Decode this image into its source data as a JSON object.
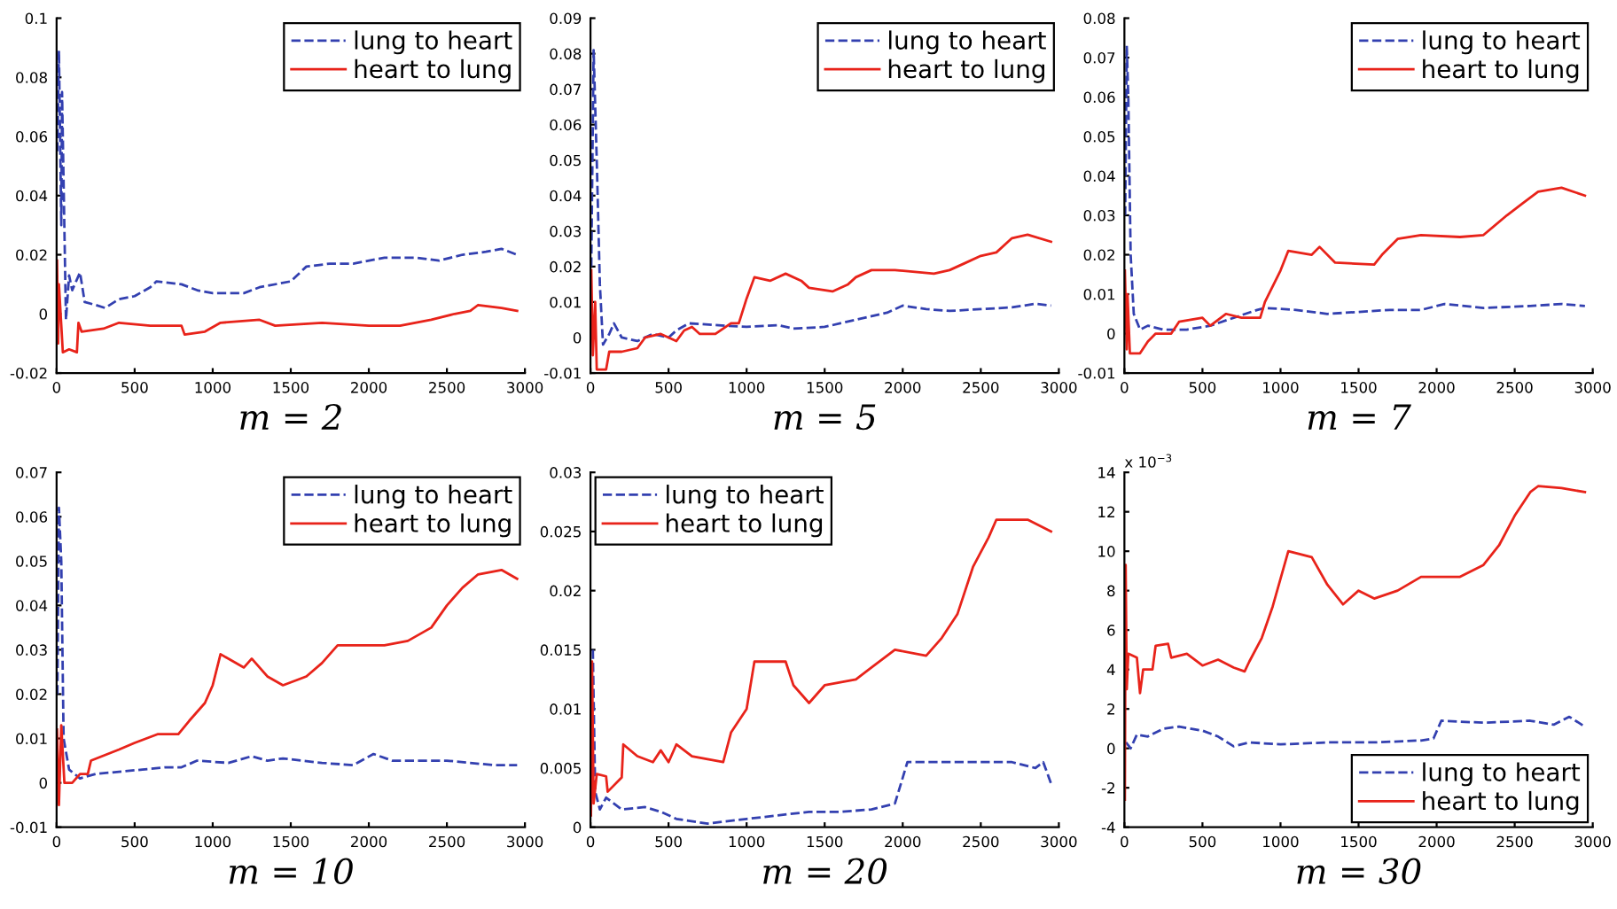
{
  "chart_data": [
    {
      "type": "line",
      "xlabel": "m = 2",
      "xlim": [
        0,
        3000
      ],
      "xticks": [
        0,
        500,
        1000,
        1500,
        2000,
        2500,
        3000
      ],
      "ylim": [
        -0.02,
        0.1
      ],
      "yticks": [
        -0.02,
        0,
        0.02,
        0.04,
        0.06,
        0.08,
        0.1
      ],
      "legend": "top right",
      "grid": false,
      "series": [
        {
          "name": "lung to heart",
          "color": "#3340b0",
          "line_style": "dashed",
          "x": [
            5,
            15,
            30,
            35,
            60,
            80,
            100,
            150,
            180,
            250,
            310,
            400,
            500,
            600,
            640,
            800,
            900,
            1000,
            1200,
            1300,
            1500,
            1600,
            1750,
            1900,
            2100,
            2300,
            2450,
            2600,
            2750,
            2850,
            2950
          ],
          "values": [
            0.055,
            0.089,
            0.03,
            0.075,
            -0.002,
            0.013,
            0.008,
            0.014,
            0.004,
            0.003,
            0.002,
            0.005,
            0.006,
            0.009,
            0.011,
            0.01,
            0.008,
            0.007,
            0.007,
            0.009,
            0.011,
            0.016,
            0.017,
            0.017,
            0.019,
            0.019,
            0.018,
            0.02,
            0.021,
            0.022,
            0.02
          ]
        },
        {
          "name": "heart to lung",
          "color": "#e8231a",
          "line_style": "solid",
          "x": [
            3,
            10,
            15,
            40,
            80,
            130,
            140,
            160,
            300,
            400,
            600,
            800,
            820,
            950,
            1050,
            1300,
            1400,
            1700,
            2000,
            2200,
            2400,
            2550,
            2650,
            2700,
            2850,
            2950
          ],
          "values": [
            0.018,
            -0.01,
            0.01,
            -0.013,
            -0.012,
            -0.013,
            -0.003,
            -0.006,
            -0.005,
            -0.003,
            -0.004,
            -0.004,
            -0.007,
            -0.006,
            -0.003,
            -0.002,
            -0.004,
            -0.003,
            -0.004,
            -0.004,
            -0.002,
            0,
            0.001,
            0.003,
            0.002,
            0.001
          ]
        }
      ]
    },
    {
      "type": "line",
      "xlabel": "m = 5",
      "xlim": [
        0,
        3000
      ],
      "xticks": [
        0,
        500,
        1000,
        1500,
        2000,
        2500,
        3000
      ],
      "ylim": [
        -0.01,
        0.09
      ],
      "yticks": [
        -0.01,
        0,
        0.01,
        0.02,
        0.03,
        0.04,
        0.05,
        0.06,
        0.07,
        0.08,
        0.09
      ],
      "legend": "top right",
      "grid": false,
      "series": [
        {
          "name": "lung to heart",
          "color": "#3340b0",
          "line_style": "dashed",
          "x": [
            5,
            20,
            40,
            60,
            80,
            120,
            150,
            200,
            300,
            400,
            500,
            550,
            630,
            800,
            1000,
            1200,
            1300,
            1500,
            1700,
            1900,
            2000,
            2150,
            2300,
            2500,
            2700,
            2850,
            2950
          ],
          "values": [
            0.02,
            0.081,
            0.05,
            0.015,
            -0.002,
            0.001,
            0.004,
            0,
            -0.001,
            0.001,
            0,
            0.002,
            0.004,
            0.0035,
            0.003,
            0.0035,
            0.0025,
            0.003,
            0.005,
            0.007,
            0.009,
            0.008,
            0.0075,
            0.008,
            0.0085,
            0.0095,
            0.009
          ]
        },
        {
          "name": "heart to lung",
          "color": "#e8231a",
          "line_style": "solid",
          "x": [
            5,
            15,
            30,
            40,
            100,
            120,
            200,
            300,
            350,
            450,
            550,
            600,
            650,
            700,
            800,
            900,
            950,
            1000,
            1050,
            1150,
            1250,
            1350,
            1400,
            1550,
            1650,
            1700,
            1800,
            1950,
            2200,
            2300,
            2400,
            2500,
            2600,
            2700,
            2800,
            2950
          ],
          "values": [
            0.019,
            -0.005,
            0.01,
            -0.009,
            -0.009,
            -0.004,
            -0.004,
            -0.003,
            0,
            0.001,
            -0.001,
            0.002,
            0.003,
            0.001,
            0.001,
            0.004,
            0.004,
            0.011,
            0.017,
            0.016,
            0.018,
            0.016,
            0.014,
            0.013,
            0.015,
            0.017,
            0.019,
            0.019,
            0.018,
            0.019,
            0.021,
            0.023,
            0.024,
            0.028,
            0.029,
            0.027
          ]
        }
      ]
    },
    {
      "type": "line",
      "xlabel": "m = 7",
      "xlim": [
        0,
        3000
      ],
      "xticks": [
        0,
        500,
        1000,
        1500,
        2000,
        2500,
        3000
      ],
      "ylim": [
        -0.01,
        0.08
      ],
      "yticks": [
        -0.01,
        0,
        0.01,
        0.02,
        0.03,
        0.04,
        0.05,
        0.06,
        0.07,
        0.08
      ],
      "legend": "top right",
      "grid": false,
      "series": [
        {
          "name": "lung to heart",
          "color": "#3340b0",
          "line_style": "dashed",
          "x": [
            5,
            15,
            25,
            40,
            60,
            100,
            150,
            250,
            400,
            550,
            700,
            850,
            900,
            1100,
            1300,
            1500,
            1700,
            1900,
            2050,
            2300,
            2600,
            2800,
            2950
          ],
          "values": [
            0.03,
            0.073,
            0.06,
            0.02,
            0.005,
            0.001,
            0.002,
            0.001,
            0.001,
            0.002,
            0.004,
            0.006,
            0.0065,
            0.006,
            0.005,
            0.0055,
            0.006,
            0.006,
            0.0075,
            0.0065,
            0.007,
            0.0075,
            0.007
          ]
        },
        {
          "name": "heart to lung",
          "color": "#e8231a",
          "line_style": "solid",
          "x": [
            3,
            15,
            20,
            35,
            100,
            150,
            200,
            300,
            350,
            500,
            550,
            650,
            750,
            870,
            900,
            1000,
            1050,
            1200,
            1250,
            1350,
            1600,
            1650,
            1750,
            1900,
            2150,
            2300,
            2450,
            2550,
            2650,
            2800,
            2950
          ],
          "values": [
            0.016,
            -0.004,
            0.01,
            -0.005,
            -0.005,
            -0.002,
            0,
            0,
            0.003,
            0.004,
            0.002,
            0.005,
            0.004,
            0.004,
            0.008,
            0.016,
            0.021,
            0.02,
            0.022,
            0.018,
            0.0175,
            0.02,
            0.024,
            0.025,
            0.0245,
            0.025,
            0.03,
            0.033,
            0.036,
            0.037,
            0.035
          ]
        }
      ]
    },
    {
      "type": "line",
      "xlabel": "m = 10",
      "xlim": [
        0,
        3000
      ],
      "xticks": [
        0,
        500,
        1000,
        1500,
        2000,
        2500,
        3000
      ],
      "ylim": [
        -0.01,
        0.07
      ],
      "yticks": [
        -0.01,
        0,
        0.01,
        0.02,
        0.03,
        0.04,
        0.05,
        0.06,
        0.07
      ],
      "legend": "top right",
      "grid": false,
      "series": [
        {
          "name": "lung to heart",
          "color": "#3340b0",
          "line_style": "dashed",
          "x": [
            5,
            15,
            30,
            45,
            80,
            150,
            250,
            400,
            550,
            700,
            800,
            900,
            1100,
            1250,
            1350,
            1450,
            1700,
            1900,
            2030,
            2150,
            2500,
            2800,
            2950
          ],
          "values": [
            0.02,
            0.062,
            0.05,
            0.01,
            0.003,
            0.001,
            0.002,
            0.0025,
            0.003,
            0.0035,
            0.0035,
            0.005,
            0.0045,
            0.006,
            0.005,
            0.0055,
            0.0045,
            0.004,
            0.0065,
            0.005,
            0.005,
            0.004,
            0.004
          ]
        },
        {
          "name": "heart to lung",
          "color": "#e8231a",
          "line_style": "solid",
          "x": [
            3,
            15,
            30,
            50,
            100,
            150,
            200,
            220,
            400,
            500,
            650,
            780,
            850,
            950,
            1000,
            1050,
            1200,
            1250,
            1350,
            1450,
            1600,
            1700,
            1800,
            2100,
            2250,
            2400,
            2500,
            2600,
            2700,
            2850,
            2950
          ],
          "values": [
            0.012,
            -0.005,
            0.013,
            0,
            0,
            0.002,
            0.002,
            0.005,
            0.0075,
            0.009,
            0.011,
            0.011,
            0.014,
            0.018,
            0.022,
            0.029,
            0.026,
            0.028,
            0.024,
            0.022,
            0.024,
            0.027,
            0.031,
            0.031,
            0.032,
            0.035,
            0.04,
            0.044,
            0.047,
            0.048,
            0.046
          ]
        }
      ]
    },
    {
      "type": "line",
      "xlabel": "m = 20",
      "xlim": [
        0,
        3000
      ],
      "xticks": [
        0,
        500,
        1000,
        1500,
        2000,
        2500,
        3000
      ],
      "ylim": [
        0,
        0.03
      ],
      "yticks": [
        0,
        0.005,
        0.01,
        0.015,
        0.02,
        0.025,
        0.03
      ],
      "legend": "top left",
      "grid": false,
      "series": [
        {
          "name": "lung to heart",
          "color": "#3340b0",
          "line_style": "dashed",
          "x": [
            15,
            30,
            60,
            100,
            200,
            350,
            450,
            550,
            750,
            1000,
            1200,
            1400,
            1600,
            1800,
            1950,
            2030,
            2300,
            2700,
            2850,
            2900,
            2950
          ],
          "values": [
            0.015,
            0.003,
            0.0015,
            0.0025,
            0.0015,
            0.0017,
            0.0013,
            0.0007,
            0.0003,
            0.0007,
            0.001,
            0.0013,
            0.0013,
            0.0015,
            0.002,
            0.0055,
            0.0055,
            0.0055,
            0.005,
            0.0055,
            0.0037
          ]
        },
        {
          "name": "heart to lung",
          "color": "#e8231a",
          "line_style": "solid",
          "x": [
            3,
            10,
            20,
            40,
            100,
            110,
            200,
            210,
            300,
            400,
            450,
            500,
            550,
            650,
            850,
            900,
            1000,
            1050,
            1250,
            1300,
            1400,
            1500,
            1700,
            1800,
            1950,
            2150,
            2250,
            2350,
            2450,
            2550,
            2600,
            2800,
            2950
          ],
          "values": [
            0.001,
            0.014,
            0.002,
            0.0045,
            0.0043,
            0.003,
            0.0042,
            0.007,
            0.006,
            0.0055,
            0.0065,
            0.0055,
            0.007,
            0.006,
            0.0055,
            0.008,
            0.01,
            0.014,
            0.014,
            0.012,
            0.0105,
            0.012,
            0.0125,
            0.0135,
            0.015,
            0.0145,
            0.016,
            0.018,
            0.022,
            0.0245,
            0.026,
            0.026,
            0.025
          ]
        }
      ]
    },
    {
      "type": "line",
      "xlabel": "m = 30",
      "annotations": [
        "x 10$^{−3}$"
      ],
      "xlim": [
        0,
        3000
      ],
      "xticks": [
        0,
        500,
        1000,
        1500,
        2000,
        2500,
        3000
      ],
      "ylim": [
        -4,
        14
      ],
      "yticks": [
        -4,
        -2,
        0,
        2,
        4,
        6,
        8,
        10,
        12,
        14
      ],
      "legend": "bottom right",
      "grid": false,
      "series": [
        {
          "name": "lung to heart",
          "color": "#3340b0",
          "line_style": "dashed",
          "x": [
            10,
            40,
            80,
            150,
            250,
            350,
            500,
            600,
            700,
            800,
            1000,
            1300,
            1600,
            1900,
            1980,
            2030,
            2300,
            2600,
            2750,
            2850,
            2950
          ],
          "values": [
            0.3,
            0,
            0.7,
            0.6,
            1.0,
            1.1,
            0.9,
            0.6,
            0.1,
            0.3,
            0.2,
            0.3,
            0.3,
            0.4,
            0.5,
            1.4,
            1.3,
            1.4,
            1.2,
            1.6,
            1.1
          ]
        },
        {
          "name": "heart to lung",
          "color": "#e8231a",
          "line_style": "solid",
          "x": [
            3,
            8,
            15,
            25,
            80,
            100,
            120,
            180,
            200,
            280,
            300,
            400,
            500,
            600,
            700,
            770,
            800,
            880,
            950,
            1050,
            1200,
            1300,
            1400,
            1500,
            1600,
            1750,
            1900,
            2150,
            2300,
            2400,
            2500,
            2600,
            2650,
            2800,
            2950
          ],
          "values": [
            -2.6,
            9.3,
            3,
            4.8,
            4.6,
            2.8,
            4.0,
            4.0,
            5.2,
            5.3,
            4.6,
            4.8,
            4.2,
            4.5,
            4.1,
            3.9,
            4.4,
            5.6,
            7.2,
            10,
            9.7,
            8.3,
            7.3,
            8,
            7.6,
            8,
            8.7,
            8.7,
            9.3,
            10.3,
            11.8,
            13,
            13.3,
            13.2,
            13
          ]
        }
      ]
    }
  ]
}
